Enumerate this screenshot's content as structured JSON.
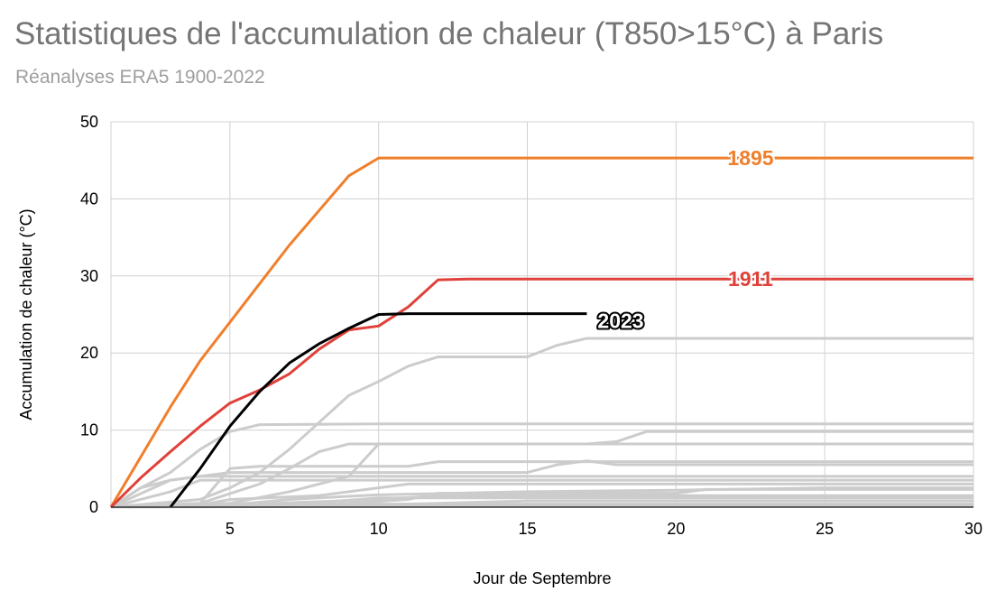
{
  "chart_data": {
    "type": "line",
    "title": "Statistiques de l'accumulation de chaleur (T850>15°C) à Paris",
    "subtitle": "Réanalyses ERA5 1900-2022",
    "xlabel": "Jour de Septembre",
    "ylabel": "Accumulation de chaleur (°C)",
    "xlim": [
      1,
      30
    ],
    "ylim": [
      0,
      50
    ],
    "xticks": [
      5,
      10,
      15,
      20,
      25,
      30
    ],
    "yticks": [
      0,
      10,
      20,
      30,
      40,
      50
    ],
    "grid": true,
    "highlighted_series": [
      {
        "name": "1895",
        "color": "#f07f2c",
        "x": [
          1,
          2,
          3,
          4,
          5,
          6,
          7,
          8,
          9,
          10,
          11,
          12,
          15,
          20,
          25,
          30
        ],
        "values": [
          0,
          6.5,
          13,
          19,
          24,
          29,
          34,
          38.5,
          43,
          45.3,
          45.3,
          45.3,
          45.3,
          45.3,
          45.3,
          45.3
        ]
      },
      {
        "name": "1911",
        "color": "#e0413a",
        "x": [
          1,
          2,
          3,
          4,
          5,
          6,
          7,
          8,
          9,
          10,
          11,
          12,
          13,
          15,
          20,
          25,
          30
        ],
        "values": [
          0,
          3.8,
          7.2,
          10.5,
          13.5,
          15.2,
          17.3,
          20.5,
          23,
          23.5,
          26,
          29.5,
          29.6,
          29.6,
          29.6,
          29.6,
          29.6
        ]
      },
      {
        "name": "2023",
        "color": "#000000",
        "x": [
          3,
          4,
          5,
          6,
          7,
          8,
          9,
          10,
          11,
          12,
          13,
          15,
          17
        ],
        "values": [
          0,
          5,
          10.5,
          15,
          18.7,
          21.2,
          23.2,
          25,
          25.1,
          25.1,
          25.1,
          25.1,
          25.1
        ]
      }
    ],
    "background_series_color": "#cccccc",
    "background_series": [
      {
        "x": [
          1,
          4,
          5,
          6,
          7,
          8,
          9,
          10,
          11,
          12,
          15,
          16,
          17,
          20,
          25,
          30
        ],
        "values": [
          0,
          1,
          2.5,
          4.5,
          7.5,
          11,
          14.5,
          16.3,
          18.3,
          19.5,
          19.5,
          21,
          21.9,
          21.9,
          21.9,
          21.9
        ]
      },
      {
        "x": [
          1,
          2,
          3,
          4,
          5,
          6,
          10,
          15,
          20,
          25,
          30
        ],
        "values": [
          0,
          2.5,
          4.5,
          7.5,
          9.8,
          10.7,
          10.8,
          10.8,
          10.8,
          10.8,
          10.8
        ]
      },
      {
        "x": [
          1,
          4,
          6,
          7,
          8,
          9,
          10,
          15,
          17,
          18,
          19,
          20,
          25,
          30
        ],
        "values": [
          0,
          0.5,
          3,
          5,
          7.2,
          8.2,
          8.2,
          8.2,
          8.2,
          8.5,
          9.8,
          9.8,
          9.8,
          9.8
        ]
      },
      {
        "x": [
          1,
          5,
          7,
          9,
          10,
          20,
          25,
          30
        ],
        "values": [
          0,
          0.5,
          2,
          4,
          8.2,
          8.2,
          8.2,
          8.2
        ]
      },
      {
        "x": [
          1,
          4,
          5,
          6,
          10,
          11,
          12,
          15,
          20,
          25,
          30
        ],
        "values": [
          0,
          0.5,
          5,
          5.3,
          5.3,
          5.3,
          5.9,
          5.9,
          5.9,
          5.9,
          5.9
        ]
      },
      {
        "x": [
          1,
          2,
          3,
          4,
          5,
          10,
          15,
          16,
          17,
          18,
          20,
          25,
          30
        ],
        "values": [
          0,
          2.5,
          3.5,
          4,
          4.5,
          4.5,
          4.5,
          5.5,
          6,
          5.5,
          5.5,
          5.5,
          5.5
        ]
      },
      {
        "x": [
          1,
          3,
          4,
          5,
          10,
          15,
          20,
          25,
          30
        ],
        "values": [
          0,
          3.5,
          4,
          4,
          4,
          4,
          4,
          4,
          4
        ]
      },
      {
        "x": [
          1,
          3,
          4,
          10,
          15,
          20,
          25,
          30
        ],
        "values": [
          0,
          2,
          3.5,
          3.5,
          3.5,
          3.5,
          3.5,
          3.5
        ]
      },
      {
        "x": [
          1,
          4,
          5,
          8,
          10,
          11,
          15,
          20,
          25,
          30
        ],
        "values": [
          0,
          0.3,
          1,
          1.5,
          2.5,
          3,
          3,
          3,
          3,
          3
        ]
      },
      {
        "x": [
          1,
          5,
          7,
          8,
          9,
          10,
          15,
          20,
          25,
          30
        ],
        "values": [
          0,
          0.3,
          1,
          1.2,
          1.4,
          1.6,
          2,
          2.2,
          2.5,
          2.5
        ]
      },
      {
        "x": [
          1,
          7,
          9,
          11,
          12,
          15,
          20,
          21,
          25,
          30
        ],
        "values": [
          0,
          0.2,
          0.5,
          1,
          1.8,
          1.8,
          1.8,
          2.3,
          2.3,
          2.3
        ]
      },
      {
        "x": [
          1,
          5,
          10,
          12,
          15,
          18,
          20,
          25,
          30
        ],
        "values": [
          0,
          0.3,
          1,
          1.5,
          1.5,
          1.5,
          1.5,
          1.5,
          1.5
        ]
      },
      {
        "x": [
          1,
          6,
          8,
          10,
          15,
          20,
          25,
          30
        ],
        "values": [
          0,
          0.2,
          0.6,
          1.2,
          1.2,
          1.2,
          1.2,
          1.2
        ]
      },
      {
        "x": [
          1,
          9,
          12,
          15,
          20,
          25,
          30
        ],
        "values": [
          0,
          0.2,
          0.5,
          0.8,
          0.8,
          0.8,
          0.8
        ]
      },
      {
        "x": [
          1,
          4,
          8,
          10,
          15,
          20,
          25,
          30
        ],
        "values": [
          0,
          0.1,
          0.3,
          0.4,
          0.4,
          0.4,
          0.4,
          0.4
        ]
      },
      {
        "x": [
          1,
          5,
          10,
          15,
          20,
          25,
          30
        ],
        "values": [
          0,
          0.05,
          0.15,
          0.2,
          0.2,
          0.2,
          0.2
        ]
      }
    ]
  }
}
